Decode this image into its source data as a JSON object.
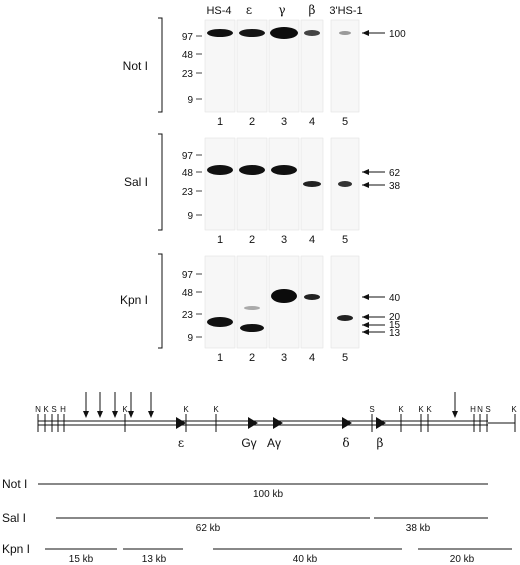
{
  "lanes": {
    "headers": [
      "HS-4",
      "ε",
      "γ",
      "β",
      "3'HS-1"
    ],
    "numbers": [
      "1",
      "2",
      "3",
      "4",
      "5"
    ]
  },
  "digests": [
    {
      "enzyme": "Not I",
      "ladder": [
        "97",
        "48",
        "23",
        "9"
      ],
      "markers": [
        "100"
      ]
    },
    {
      "enzyme": "Sal I",
      "ladder": [
        "97",
        "48",
        "23",
        "9"
      ],
      "markers": [
        "62",
        "38"
      ]
    },
    {
      "enzyme": "Kpn I",
      "ladder": [
        "97",
        "48",
        "23",
        "9"
      ],
      "markers": [
        "40",
        "20",
        "15",
        "13"
      ]
    }
  ],
  "map": {
    "site_labels": [
      "N",
      "K",
      "S",
      "H",
      "K",
      "K",
      "K",
      "S",
      "K",
      "K",
      "K",
      "H",
      "N",
      "S",
      "K"
    ],
    "genes": [
      "ε",
      "Gγ",
      "Aγ",
      "δ",
      "β"
    ]
  },
  "fragments": {
    "not_i": {
      "label": "Not I",
      "sizes": [
        "100 kb"
      ]
    },
    "sal_i": {
      "label": "Sal I",
      "sizes": [
        "62 kb",
        "38 kb"
      ]
    },
    "kpn_i": {
      "label": "Kpn I",
      "sizes": [
        "15 kb",
        "13 kb",
        "40 kb",
        "20 kb"
      ]
    }
  }
}
